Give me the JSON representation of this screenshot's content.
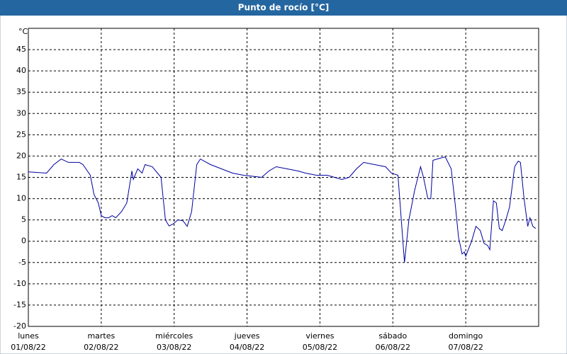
{
  "chart_data": {
    "type": "line",
    "title": "Punto de rocío [°C]",
    "ylabel": "°C",
    "xlim": [
      0,
      7
    ],
    "ylim": [
      -20,
      50
    ],
    "yticks": [
      -20,
      -15,
      -10,
      -5,
      0,
      5,
      10,
      15,
      20,
      25,
      30,
      35,
      40,
      45
    ],
    "xticks": [
      {
        "value": 0,
        "label": "lunes"
      },
      {
        "value": 1,
        "label": "martes"
      },
      {
        "value": 2,
        "label": "miércoles"
      },
      {
        "value": 3,
        "label": "jueves"
      },
      {
        "value": 4,
        "label": "viernes"
      },
      {
        "value": 5,
        "label": "sábado"
      },
      {
        "value": 6,
        "label": "domingo"
      }
    ],
    "xtick_dates": [
      "01/08/22",
      "02/08/22",
      "03/08/22",
      "04/08/22",
      "05/08/22",
      "06/08/22",
      "07/08/22"
    ],
    "grid": true,
    "series": [
      {
        "color": "#0000a0",
        "x": [
          0,
          0.25,
          0.35,
          0.45,
          0.55,
          0.7,
          0.75,
          0.85,
          0.9,
          0.96,
          1.0,
          1.05,
          1.1,
          1.15,
          1.2,
          1.28,
          1.35,
          1.42,
          1.44,
          1.5,
          1.56,
          1.6,
          1.7,
          1.82,
          1.88,
          1.93,
          1.98,
          2.05,
          2.12,
          2.18,
          2.24,
          2.31,
          2.36,
          2.5,
          2.65,
          2.8,
          2.95,
          3.1,
          3.2,
          3.3,
          3.4,
          3.55,
          3.7,
          3.8,
          3.95,
          4.1,
          4.2,
          4.3,
          4.4,
          4.5,
          4.6,
          4.75,
          4.9,
          4.98,
          5.07,
          5.16,
          5.22,
          5.3,
          5.38,
          5.42,
          5.48,
          5.52,
          5.55,
          5.65,
          5.72,
          5.8,
          5.86,
          5.9,
          5.95,
          5.98,
          6.0,
          6.08,
          6.14,
          6.2,
          6.25,
          6.3,
          6.33,
          6.38,
          6.42,
          6.46,
          6.5,
          6.55,
          6.6,
          6.67,
          6.72,
          6.75,
          6.8,
          6.85,
          6.88,
          6.92,
          6.96
        ],
        "values": [
          16.3,
          16,
          18,
          19.3,
          18.5,
          18.5,
          18,
          15.5,
          11,
          9,
          6,
          5.5,
          5.5,
          6,
          5.5,
          7,
          9,
          16.5,
          14.5,
          17,
          16,
          18,
          17.5,
          15,
          5,
          3.6,
          4,
          5,
          4.8,
          3.5,
          7,
          18,
          19.3,
          18,
          17,
          16,
          15.5,
          15.2,
          15,
          16.5,
          17.5,
          17,
          16.5,
          16,
          15.5,
          15.5,
          15,
          14.5,
          15,
          17,
          18.5,
          18,
          17.5,
          16,
          15.5,
          -5,
          5,
          12,
          17.5,
          15,
          10,
          10,
          19,
          19.5,
          19.8,
          17,
          8,
          1,
          -3,
          -2.5,
          -3.5,
          0,
          3.5,
          2.5,
          -0.5,
          -1,
          -2,
          9.5,
          9,
          3,
          2.5,
          5,
          8,
          17.5,
          18.8,
          18.5,
          10,
          3.5,
          5.5,
          3.5,
          3
        ]
      }
    ]
  }
}
